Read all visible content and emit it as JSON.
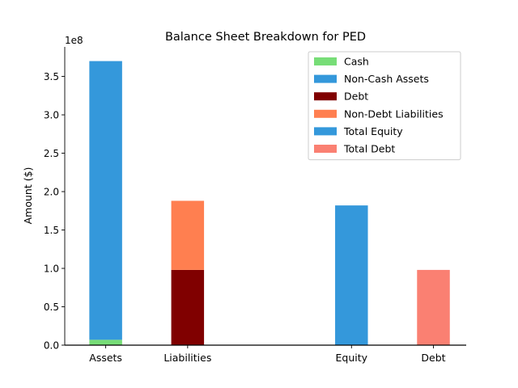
{
  "chart_data": {
    "type": "bar",
    "title": "Balance Sheet Breakdown for PED",
    "ylabel": "Amount ($)",
    "xlabel": "",
    "y_offset_label": "1e8",
    "ylim": [
      0,
      3.885
    ],
    "y_ticks": [
      0.0,
      0.5,
      1.0,
      1.5,
      2.0,
      2.5,
      3.0,
      3.5
    ],
    "y_tick_labels": [
      "0.0",
      "0.5",
      "1.0",
      "1.5",
      "2.0",
      "2.5",
      "3.0",
      "3.5"
    ],
    "categories": [
      "Assets",
      "Liabilities",
      "Equity",
      "Debt"
    ],
    "category_positions": [
      0,
      1,
      3,
      4
    ],
    "xlim": [
      -0.5,
      4.4
    ],
    "bar_width": 0.4,
    "series": [
      {
        "name": "Cash",
        "color": "#77dd77",
        "category": "Assets",
        "base": 0.0,
        "value": 0.07
      },
      {
        "name": "Non-Cash Assets",
        "color": "#3498db",
        "category": "Assets",
        "base": 0.07,
        "value": 3.63
      },
      {
        "name": "Debt",
        "color": "#800000",
        "category": "Liabilities",
        "base": 0.0,
        "value": 0.98
      },
      {
        "name": "Non-Debt Liabilities",
        "color": "#ff7f50",
        "category": "Liabilities",
        "base": 0.98,
        "value": 0.9
      },
      {
        "name": "Total Equity",
        "color": "#3498db",
        "category": "Equity",
        "base": 0.0,
        "value": 1.82
      },
      {
        "name": "Total Debt",
        "color": "#fa8072",
        "category": "Debt",
        "base": 0.0,
        "value": 0.98
      }
    ],
    "legend_position": "top-right",
    "grid": false
  }
}
